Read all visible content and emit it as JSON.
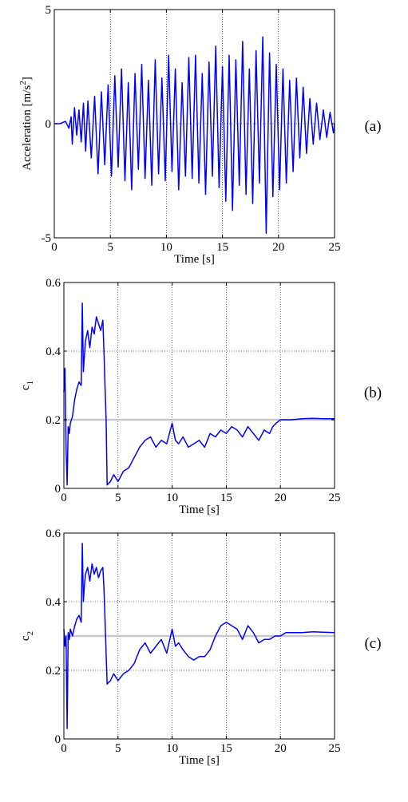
{
  "colors": {
    "signal": "#0000ff",
    "reference": "#c8c8c8",
    "grid": "#000000"
  },
  "chart_data": [
    {
      "type": "line",
      "panel_label": "(a)",
      "xlabel": "Time [s]",
      "ylabel": "Acceleration [m/s",
      "ylabel_sup": "2",
      "ylabel_end": "]",
      "xlim": [
        0,
        25
      ],
      "ylim": [
        -5,
        5
      ],
      "xticks": [
        0,
        5,
        10,
        15,
        20,
        25
      ],
      "yticks": [
        -5,
        0,
        5
      ],
      "xtick_labels": [
        "0",
        "5",
        "10",
        "15",
        "20",
        "25"
      ],
      "ytick_labels": [
        "-5",
        "0",
        "5"
      ],
      "grid": true,
      "series": [
        {
          "style": "solid",
          "x": [
            0,
            0.5,
            1.0,
            1.3,
            1.5,
            1.6,
            1.8,
            2.0,
            2.2,
            2.4,
            2.6,
            2.8,
            3.0,
            3.3,
            3.6,
            3.9,
            4.2,
            4.5,
            4.8,
            5.1,
            5.4,
            5.7,
            6.0,
            6.3,
            6.6,
            6.9,
            7.2,
            7.5,
            7.8,
            8.1,
            8.4,
            8.7,
            9.0,
            9.3,
            9.6,
            9.9,
            10.2,
            10.5,
            10.8,
            11.1,
            11.4,
            11.7,
            12.0,
            12.3,
            12.6,
            12.9,
            13.2,
            13.5,
            13.8,
            14.1,
            14.4,
            14.7,
            15.0,
            15.3,
            15.6,
            15.9,
            16.2,
            16.5,
            16.8,
            17.1,
            17.4,
            17.7,
            18.0,
            18.3,
            18.6,
            18.9,
            19.2,
            19.5,
            19.8,
            20.1,
            20.4,
            20.7,
            21.0,
            21.3,
            21.6,
            21.9,
            22.2,
            22.5,
            22.8,
            23.1,
            23.4,
            23.7,
            24.0,
            24.3,
            24.6,
            24.9,
            25.0
          ],
          "y": [
            0,
            0,
            0.1,
            -0.2,
            0.3,
            -0.9,
            0.7,
            -0.5,
            0.6,
            -0.8,
            0.9,
            -1.2,
            1.0,
            -1.5,
            1.2,
            -2.2,
            1.4,
            -1.8,
            1.7,
            -2.3,
            2.1,
            -1.9,
            2.4,
            -2.5,
            1.8,
            -2.9,
            2.2,
            -2.0,
            2.6,
            -2.4,
            1.9,
            -2.7,
            2.8,
            -2.2,
            2.0,
            -2.5,
            3.0,
            -2.1,
            2.4,
            -2.9,
            1.8,
            -2.3,
            2.9,
            -2.4,
            3.0,
            -2.6,
            2.2,
            -3.1,
            2.7,
            -2.3,
            3.4,
            -2.8,
            2.5,
            -3.4,
            3.0,
            -3.8,
            2.8,
            -2.7,
            3.6,
            -3.1,
            2.4,
            -3.5,
            3.2,
            -2.6,
            3.8,
            -4.8,
            3.1,
            -3.2,
            2.6,
            -2.9,
            2.4,
            -2.6,
            1.9,
            -2.1,
            2.0,
            -1.5,
            1.6,
            -1.3,
            1.1,
            -0.9,
            0.9,
            -0.7,
            0.6,
            -0.6,
            0.5,
            -0.4,
            0
          ]
        }
      ]
    },
    {
      "type": "line",
      "panel_label": "(b)",
      "xlabel": "Time [s]",
      "ylabel": "c",
      "ylabel_sub": "1",
      "xlim": [
        0,
        25
      ],
      "ylim": [
        0,
        0.6
      ],
      "xticks": [
        0,
        5,
        10,
        15,
        20,
        25
      ],
      "yticks": [
        0,
        0.2,
        0.4,
        0.6
      ],
      "xtick_labels": [
        "0",
        "5",
        "10",
        "15",
        "20",
        "25"
      ],
      "ytick_labels": [
        "0",
        "0.2",
        "0.4",
        "0.6"
      ],
      "grid": true,
      "reference_value": 0.2,
      "series": [
        {
          "style": "solid",
          "x": [
            0,
            0.1,
            0.2,
            0.3,
            0.4,
            0.5,
            0.6,
            0.8,
            1.0,
            1.2,
            1.4,
            1.6,
            1.7,
            1.8,
            1.9,
            2.0,
            2.2,
            2.4,
            2.6,
            2.8,
            3.0,
            3.2,
            3.4,
            3.6,
            3.7,
            3.8,
            3.9,
            4.0,
            4.3,
            4.6,
            5.0,
            5.5,
            6.0,
            6.5,
            7.0,
            7.5,
            8.0,
            8.5,
            9.0,
            9.5,
            10.0,
            10.3,
            10.6,
            11.0,
            11.5,
            12.0,
            12.5,
            13.0,
            13.5,
            14.0,
            14.5,
            15.0,
            15.5,
            16.0,
            16.5,
            17.0,
            17.5,
            18.0,
            18.5,
            19.0,
            19.3,
            19.6,
            20.0,
            20.5,
            21.0,
            22.0,
            23.0,
            24.0,
            25.0
          ],
          "y": [
            0.28,
            0.35,
            0.12,
            0.01,
            0.18,
            0.16,
            0.19,
            0.21,
            0.26,
            0.29,
            0.31,
            0.3,
            0.54,
            0.34,
            0.39,
            0.43,
            0.46,
            0.41,
            0.47,
            0.45,
            0.5,
            0.48,
            0.46,
            0.49,
            0.4,
            0.3,
            0.2,
            0.01,
            0.02,
            0.04,
            0.02,
            0.05,
            0.06,
            0.09,
            0.12,
            0.14,
            0.15,
            0.12,
            0.14,
            0.13,
            0.19,
            0.14,
            0.13,
            0.15,
            0.12,
            0.13,
            0.14,
            0.12,
            0.16,
            0.15,
            0.17,
            0.16,
            0.18,
            0.17,
            0.15,
            0.18,
            0.16,
            0.14,
            0.17,
            0.16,
            0.18,
            0.19,
            0.2,
            0.2,
            0.2,
            0.203,
            0.204,
            0.203,
            0.203
          ]
        }
      ]
    },
    {
      "type": "line",
      "panel_label": "(c)",
      "xlabel": "Time [s]",
      "ylabel": "c",
      "ylabel_sub": "2",
      "xlim": [
        0,
        25
      ],
      "ylim": [
        0,
        0.6
      ],
      "xticks": [
        0,
        5,
        10,
        15,
        20,
        25
      ],
      "yticks": [
        0,
        0.2,
        0.4,
        0.6
      ],
      "xtick_labels": [
        "0",
        "5",
        "10",
        "15",
        "20",
        "25"
      ],
      "ytick_labels": [
        "0",
        "0.2",
        "0.4",
        "0.6"
      ],
      "grid": true,
      "reference_value": 0.3,
      "series": [
        {
          "style": "solid",
          "x": [
            0,
            0.1,
            0.2,
            0.3,
            0.4,
            0.5,
            0.6,
            0.8,
            1.0,
            1.2,
            1.4,
            1.6,
            1.7,
            1.8,
            1.9,
            2.0,
            2.2,
            2.4,
            2.6,
            2.8,
            3.0,
            3.2,
            3.4,
            3.6,
            3.7,
            3.8,
            3.9,
            4.0,
            4.3,
            4.6,
            5.0,
            5.5,
            6.0,
            6.5,
            7.0,
            7.5,
            8.0,
            8.5,
            9.0,
            9.5,
            10.0,
            10.3,
            10.6,
            11.0,
            11.5,
            12.0,
            12.5,
            13.0,
            13.5,
            14.0,
            14.5,
            15.0,
            15.5,
            16.0,
            16.5,
            17.0,
            17.5,
            18.0,
            18.5,
            19.0,
            19.5,
            20.0,
            20.5,
            21.0,
            22.0,
            23.0,
            24.0,
            25.0
          ],
          "y": [
            0.32,
            0.27,
            0.3,
            0.03,
            0.31,
            0.29,
            0.32,
            0.3,
            0.33,
            0.35,
            0.36,
            0.34,
            0.57,
            0.4,
            0.45,
            0.48,
            0.5,
            0.46,
            0.51,
            0.48,
            0.5,
            0.47,
            0.49,
            0.5,
            0.44,
            0.35,
            0.25,
            0.16,
            0.17,
            0.19,
            0.17,
            0.19,
            0.2,
            0.22,
            0.26,
            0.28,
            0.25,
            0.27,
            0.29,
            0.25,
            0.32,
            0.27,
            0.28,
            0.26,
            0.24,
            0.23,
            0.24,
            0.24,
            0.26,
            0.3,
            0.33,
            0.34,
            0.33,
            0.32,
            0.29,
            0.33,
            0.31,
            0.28,
            0.29,
            0.29,
            0.3,
            0.3,
            0.31,
            0.31,
            0.31,
            0.312,
            0.311,
            0.31
          ]
        }
      ]
    }
  ]
}
